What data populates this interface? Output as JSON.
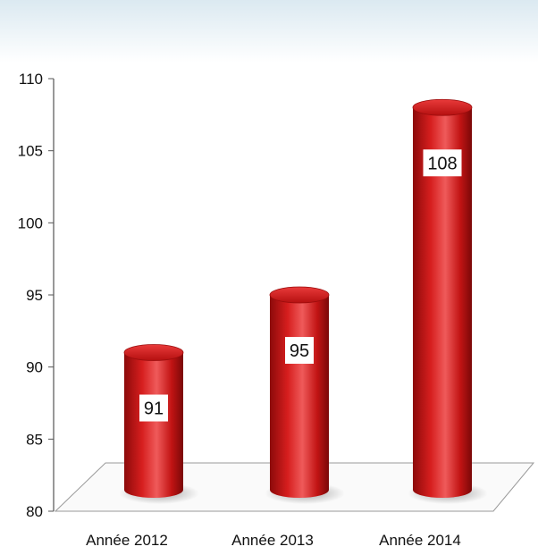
{
  "colors": {
    "cylinder_dark": "#8c0a0a",
    "cylinder_mid": "#d61e1e",
    "cylinder_light": "#ef5a5a",
    "top_band": "#dbe9f1",
    "label_bg": "#ffffff",
    "axis": "#555555"
  },
  "chart_data": {
    "type": "bar",
    "style": "3d-cylinder",
    "categories": [
      "Année 2012",
      "Année 2013",
      "Année 2014"
    ],
    "values": [
      91,
      95,
      108
    ],
    "data_labels": [
      "91",
      "95",
      "108"
    ],
    "ylim": [
      80,
      110
    ],
    "yticks": [
      80,
      85,
      90,
      95,
      100,
      105,
      110
    ],
    "title": "",
    "xlabel": "",
    "ylabel": "",
    "legend": "none",
    "grid": false
  }
}
